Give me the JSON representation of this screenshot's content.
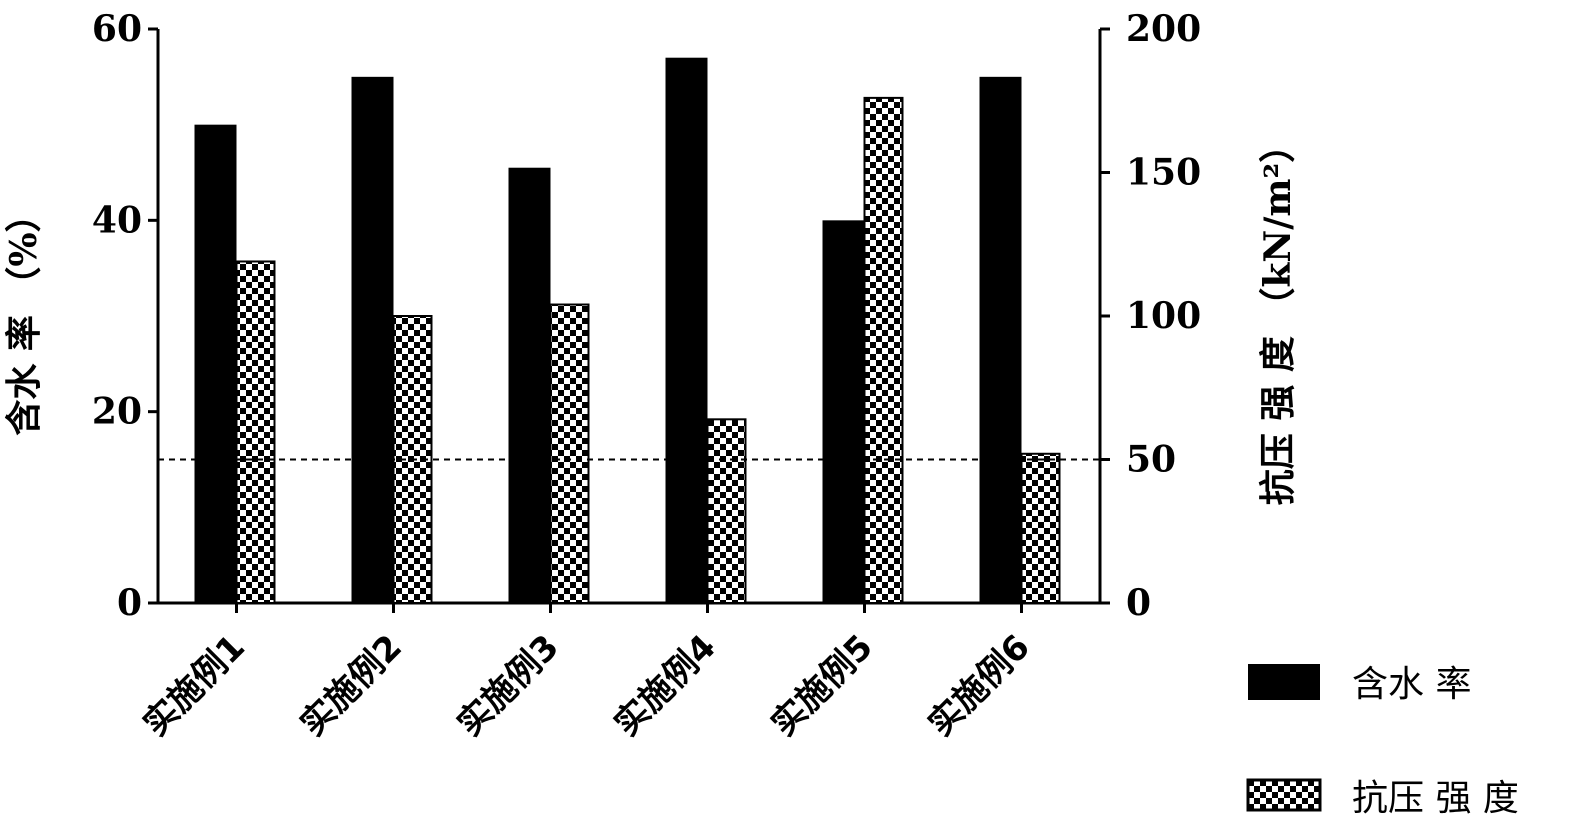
{
  "chart_data": {
    "type": "bar",
    "categories": [
      "实施例1",
      "实施例2",
      "实施例3",
      "实施例4",
      "实施例5",
      "实施例6"
    ],
    "series": [
      {
        "name": "含水 率",
        "axis": "left",
        "pattern": "solid",
        "values": [
          50,
          55,
          45.5,
          57,
          40,
          55
        ]
      },
      {
        "name": "抗压 强 度",
        "axis": "right",
        "pattern": "checker",
        "values": [
          119,
          100,
          104,
          64,
          176,
          52
        ]
      }
    ],
    "ylabel_left": "含水 率 （%）",
    "ylabel_right": "抗压 强 度 （kN/m²）",
    "ylim_left": [
      0,
      60
    ],
    "ylim_right": [
      0,
      200
    ],
    "yticks_left": [
      "0",
      "20",
      "40",
      "60"
    ],
    "yticks_right": [
      "0",
      "50",
      "100",
      "150",
      "200"
    ],
    "reference_line": {
      "axis": "right",
      "value": 50,
      "style": "dashed"
    },
    "grid": false,
    "legend_position": "bottom-right",
    "colors": {
      "bar": "#000000",
      "background": "#ffffff"
    }
  }
}
